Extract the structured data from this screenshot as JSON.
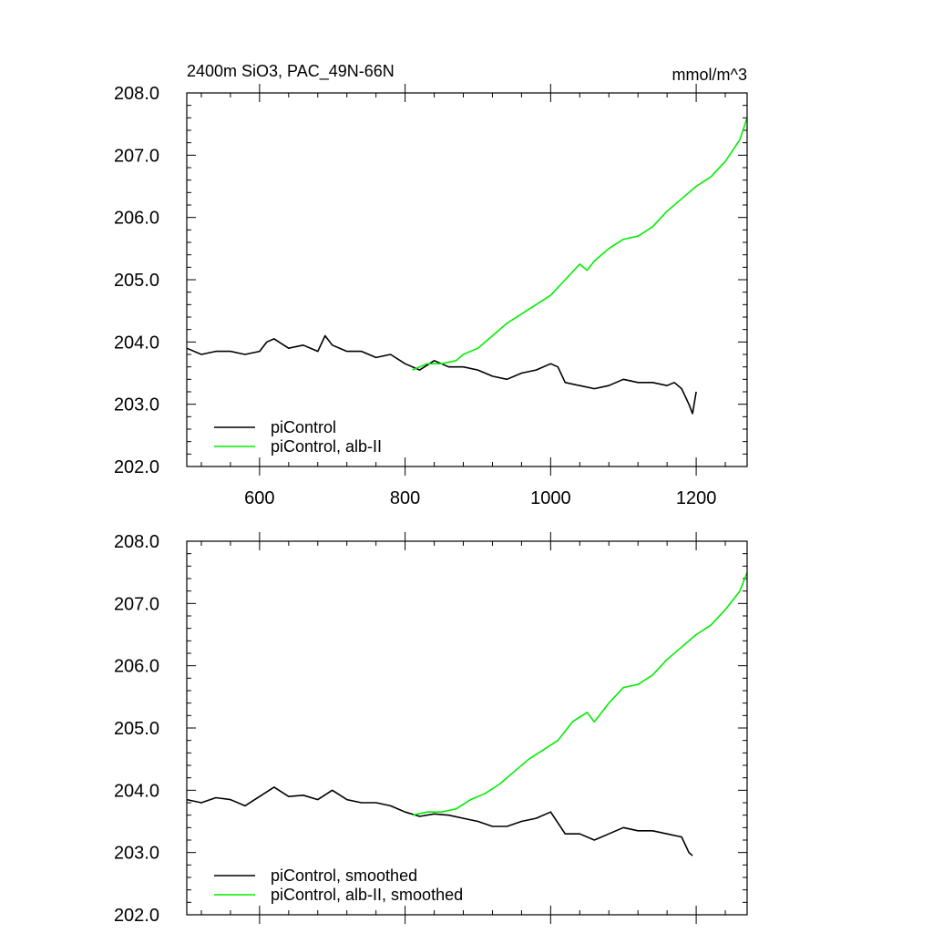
{
  "chart_data": [
    {
      "type": "line",
      "title": "2400m SiO3, PAC_49N-66N",
      "units": "mmol/m^3",
      "xlabel": "",
      "ylabel": "",
      "xlim": [
        500,
        1270
      ],
      "ylim": [
        202.0,
        208.0
      ],
      "x_ticks": [
        600,
        800,
        1000,
        1200
      ],
      "x_tick_labels": [
        "600",
        "800",
        "1000",
        "1200"
      ],
      "y_ticks": [
        202.0,
        203.0,
        204.0,
        205.0,
        206.0,
        207.0,
        208.0
      ],
      "y_tick_labels": [
        "202.0",
        "203.0",
        "204.0",
        "205.0",
        "206.0",
        "207.0",
        "208.0"
      ],
      "grid": false,
      "legend_position": "bottom-left",
      "series": [
        {
          "name": "piControl",
          "color": "#000000",
          "x": [
            500,
            520,
            540,
            560,
            580,
            600,
            610,
            620,
            640,
            660,
            680,
            690,
            700,
            720,
            740,
            760,
            780,
            800,
            820,
            840,
            860,
            880,
            900,
            920,
            940,
            960,
            980,
            1000,
            1010,
            1020,
            1040,
            1060,
            1080,
            1100,
            1120,
            1140,
            1160,
            1170,
            1180,
            1190,
            1195,
            1200
          ],
          "y": [
            203.9,
            203.8,
            203.85,
            203.85,
            203.8,
            203.85,
            204.0,
            204.05,
            203.9,
            203.95,
            203.85,
            204.1,
            203.95,
            203.85,
            203.85,
            203.75,
            203.8,
            203.65,
            203.55,
            203.7,
            203.6,
            203.6,
            203.55,
            203.45,
            203.4,
            203.5,
            203.55,
            203.65,
            203.6,
            203.35,
            203.3,
            203.25,
            203.3,
            203.4,
            203.35,
            203.35,
            203.3,
            203.35,
            203.25,
            203.0,
            202.85,
            203.2
          ]
        },
        {
          "name": "piControl, alb-II",
          "color": "#00ee00",
          "x": [
            810,
            830,
            850,
            870,
            880,
            900,
            920,
            940,
            960,
            980,
            1000,
            1020,
            1040,
            1050,
            1060,
            1080,
            1100,
            1120,
            1140,
            1160,
            1180,
            1200,
            1220,
            1240,
            1260,
            1270
          ],
          "y": [
            203.55,
            203.65,
            203.65,
            203.7,
            203.8,
            203.9,
            204.1,
            204.3,
            204.45,
            204.6,
            204.75,
            205.0,
            205.25,
            205.15,
            205.3,
            205.5,
            205.65,
            205.7,
            205.85,
            206.1,
            206.3,
            206.5,
            206.65,
            206.9,
            207.25,
            207.6
          ]
        }
      ]
    },
    {
      "type": "line",
      "title": "",
      "units": "",
      "xlabel": "",
      "ylabel": "",
      "xlim": [
        500,
        1270
      ],
      "ylim": [
        202.0,
        208.0
      ],
      "x_ticks": [
        600,
        800,
        1000,
        1200
      ],
      "x_tick_labels": [],
      "y_ticks": [
        202.0,
        203.0,
        204.0,
        205.0,
        206.0,
        207.0,
        208.0
      ],
      "y_tick_labels": [
        "202.0",
        "203.0",
        "204.0",
        "205.0",
        "206.0",
        "207.0",
        "208.0"
      ],
      "grid": false,
      "legend_position": "bottom-left",
      "series": [
        {
          "name": "piControl, smoothed",
          "color": "#000000",
          "x": [
            500,
            520,
            540,
            560,
            580,
            600,
            620,
            640,
            660,
            680,
            700,
            720,
            740,
            760,
            780,
            800,
            820,
            840,
            860,
            880,
            900,
            920,
            940,
            960,
            980,
            1000,
            1020,
            1040,
            1060,
            1080,
            1100,
            1120,
            1140,
            1160,
            1180,
            1190,
            1195
          ],
          "y": [
            203.85,
            203.8,
            203.88,
            203.85,
            203.75,
            203.9,
            204.05,
            203.9,
            203.92,
            203.85,
            204.0,
            203.85,
            203.8,
            203.8,
            203.75,
            203.65,
            203.58,
            203.62,
            203.6,
            203.55,
            203.5,
            203.42,
            203.42,
            203.5,
            203.55,
            203.65,
            203.3,
            203.3,
            203.2,
            203.3,
            203.4,
            203.35,
            203.35,
            203.3,
            203.25,
            203.0,
            202.95
          ]
        },
        {
          "name": "piControl, alb-II, smoothed",
          "color": "#00ee00",
          "x": [
            810,
            830,
            850,
            870,
            890,
            910,
            930,
            950,
            970,
            990,
            1010,
            1030,
            1050,
            1060,
            1080,
            1100,
            1120,
            1140,
            1160,
            1180,
            1200,
            1220,
            1240,
            1260,
            1270
          ],
          "y": [
            203.6,
            203.65,
            203.65,
            203.7,
            203.85,
            203.95,
            204.1,
            204.3,
            204.5,
            204.65,
            204.8,
            205.1,
            205.25,
            205.1,
            205.4,
            205.65,
            205.7,
            205.85,
            206.1,
            206.3,
            206.5,
            206.65,
            206.9,
            207.2,
            207.5
          ]
        }
      ]
    }
  ]
}
